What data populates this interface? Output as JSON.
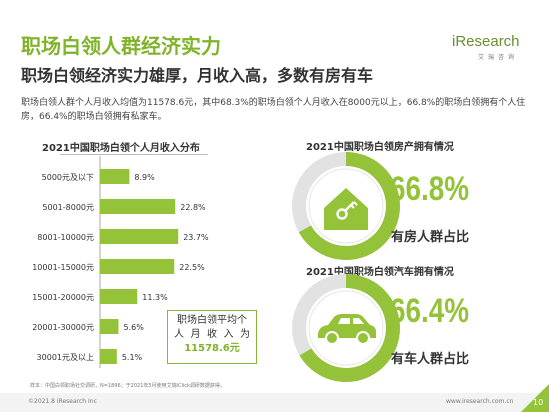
{
  "header": {
    "title": "职场白领人群经济实力",
    "subtitle": "职场白领经济实力雄厚，月收入高，多数有房有车",
    "intro": "职场白领人群个人月收入均值为11578.6元，其中68.3%的职场白领个人月收入在8000元以上，66.8%的职场白领拥有个人住房，66.4%的职场白领拥有私家车。"
  },
  "logo": {
    "main": "iResearch",
    "sub": "艾瑞咨询"
  },
  "colors": {
    "accent": "#94c238",
    "title_green": "#7fb32a",
    "ring_gray": "#e2e2e2"
  },
  "chart_data": [
    {
      "type": "bar",
      "orientation": "horizontal",
      "title": "2021中国职场白领个人月收入分布",
      "categories": [
        "5000元及以下",
        "5001-8000元",
        "8001-10000元",
        "10001-15000元",
        "15001-20000元",
        "20001-30000元",
        "30001元及以上"
      ],
      "values": [
        8.9,
        22.8,
        23.7,
        22.5,
        11.3,
        5.6,
        5.1
      ],
      "value_labels": [
        "8.9%",
        "22.8%",
        "23.7%",
        "22.5%",
        "11.3%",
        "5.6%",
        "5.1%"
      ],
      "unit": "%",
      "annotation": {
        "line1": "职场白领平均个",
        "line2": "人月收入为",
        "value": "11578.6元"
      }
    },
    {
      "type": "pie",
      "title": "2021中国职场白领房产拥有情况",
      "values": [
        66.8,
        33.2
      ],
      "value_label": "66.8%",
      "label": "有房人群占比",
      "icon": "house-key-icon"
    },
    {
      "type": "pie",
      "title": "2021中国职场白领汽车拥有情况",
      "values": [
        66.4,
        33.6
      ],
      "value_label": "66.4%",
      "label": "有车人群占比",
      "icon": "car-icon"
    }
  ],
  "footer": {
    "note": "样本：中国白领职场社交调研，N=1896；于2021年5月使用艾瑞iClick调研数据获得。",
    "copyright": "©2021.8 iResearch Inc",
    "website": "www.iresearch.com.cn",
    "page": "10"
  }
}
